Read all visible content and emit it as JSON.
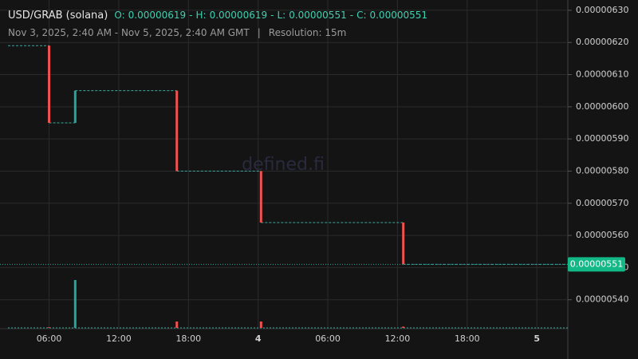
{
  "header": {
    "pair": "USD/GRAB (solana)",
    "separator": "-",
    "ohlc": [
      {
        "label": "O:",
        "value": 6.19e-06
      },
      {
        "label": "H:",
        "value": 6.19e-06
      },
      {
        "label": "L:",
        "value": 5.51e-06
      },
      {
        "label": "C:",
        "value": 5.51e-06
      }
    ],
    "range": "Nov 3, 2025, 2:40 AM - Nov 5, 2025, 2:40 AM GMT",
    "divider": "|",
    "resolution": "Resolution: 15m"
  },
  "watermark": "defined.fi",
  "chart_data": {
    "type": "candlestick",
    "x": [
      "2025-11-03T06:00",
      "2025-11-03T08:15",
      "2025-11-03T17:00",
      "2025-11-04T00:15",
      "2025-11-04T12:30"
    ],
    "open": [
      6.19e-06,
      5.95e-06,
      6.05e-06,
      5.8e-06,
      5.64e-06
    ],
    "high": [
      6.19e-06,
      6.05e-06,
      6.05e-06,
      5.8e-06,
      5.64e-06
    ],
    "low": [
      5.95e-06,
      5.95e-06,
      5.8e-06,
      5.64e-06,
      5.51e-06
    ],
    "close": [
      5.95e-06,
      6.05e-06,
      5.8e-06,
      5.64e-06,
      5.51e-06
    ],
    "volume": [
      1,
      75,
      10,
      10,
      2
    ],
    "volume_lim": [
      0,
      100
    ],
    "up_color": "#26a69a",
    "down_color": "#ef5350",
    "flat_color": "#3aa8a0",
    "xlim": [
      "2025-11-03T02:40",
      "2025-11-05T02:40"
    ],
    "xticks": [
      {
        "value": "2025-11-03T06:00",
        "label": "06:00"
      },
      {
        "value": "2025-11-03T12:00",
        "label": "12:00"
      },
      {
        "value": "2025-11-03T18:00",
        "label": "18:00"
      },
      {
        "value": "2025-11-04T00:00",
        "label": "4"
      },
      {
        "value": "2025-11-04T06:00",
        "label": "06:00"
      },
      {
        "value": "2025-11-04T12:00",
        "label": "12:00"
      },
      {
        "value": "2025-11-04T18:00",
        "label": "18:00"
      },
      {
        "value": "2025-11-05T00:00",
        "label": "5"
      }
    ],
    "ylim": [
      5.31e-06,
      6.332e-06
    ],
    "yticks": [
      {
        "value": 5.4e-06,
        "label": "0.00000540"
      },
      {
        "value": 5.5e-06,
        "label": "0.00000550"
      },
      {
        "value": 5.6e-06,
        "label": "0.00000560"
      },
      {
        "value": 5.7e-06,
        "label": "0.00000570"
      },
      {
        "value": 5.8e-06,
        "label": "0.00000580"
      },
      {
        "value": 5.9e-06,
        "label": "0.00000590"
      },
      {
        "value": 6e-06,
        "label": "0.00000600"
      },
      {
        "value": 6.1e-06,
        "label": "0.00000610"
      },
      {
        "value": 6.2e-06,
        "label": "0.00000620"
      },
      {
        "value": 6.3e-06,
        "label": "0.00000630"
      }
    ],
    "grid": true
  }
}
